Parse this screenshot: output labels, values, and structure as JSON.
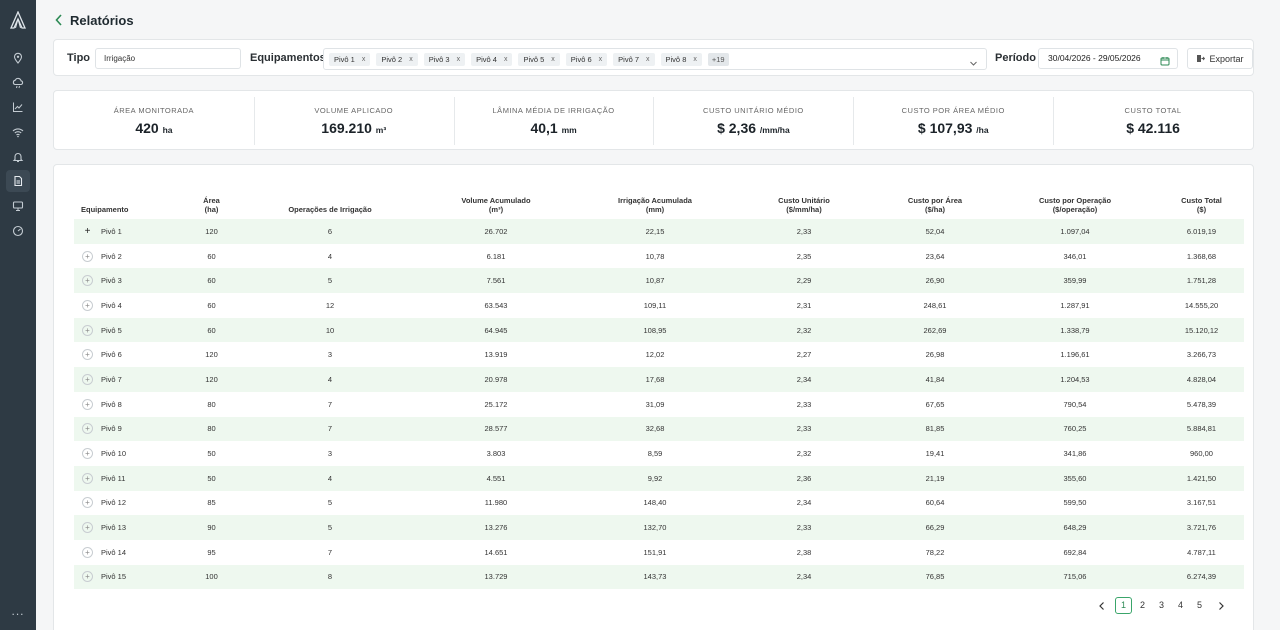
{
  "sidebar": {
    "logo": "brand-logo",
    "items": [
      {
        "icon": "map-pin-icon"
      },
      {
        "icon": "cloud-rain-icon"
      },
      {
        "icon": "chart-icon"
      },
      {
        "icon": "wifi-icon"
      },
      {
        "icon": "bell-icon"
      },
      {
        "icon": "report-icon",
        "active": true
      },
      {
        "icon": "monitor-icon"
      },
      {
        "icon": "gauge-icon"
      }
    ],
    "more": "..."
  },
  "header": {
    "title": "Relatórios"
  },
  "filters": {
    "tipo_label": "Tipo",
    "tipo_value": "Irrigação",
    "equip_label": "Equipamentos",
    "chips": [
      "Pivô 1",
      "Pivô 2",
      "Pivô 3",
      "Pivô 4",
      "Pivô 5",
      "Pivô 6",
      "Pivô 7",
      "Pivô 8"
    ],
    "chip_remove": "x",
    "more_chips": "+19",
    "periodo_label": "Período",
    "periodo_value": "30/04/2026 - 29/05/2026",
    "export_label": "Exportar"
  },
  "kpis": [
    {
      "label": "Área monitorada",
      "value": "420",
      "unit": "ha"
    },
    {
      "label": "Volume aplicado",
      "value": "169.210",
      "unit": "m³"
    },
    {
      "label": "Lâmina média de irrigação",
      "value": "40,1",
      "unit": "mm"
    },
    {
      "label": "Custo unitário médio",
      "value": "$ 2,36",
      "unit": "/mm/ha"
    },
    {
      "label": "Custo por área médio",
      "value": "$ 107,93",
      "unit": "/ha"
    },
    {
      "label": "Custo total",
      "value": "$ 42.116",
      "unit": ""
    }
  ],
  "table": {
    "headers": [
      {
        "l1": "Equipamento",
        "l2": ""
      },
      {
        "l1": "Área",
        "l2": "(ha)"
      },
      {
        "l1": "Operações de Irrigação",
        "l2": ""
      },
      {
        "l1": "Volume Acumulado",
        "l2": "(m³)"
      },
      {
        "l1": "Irrigação Acumulada",
        "l2": "(mm)"
      },
      {
        "l1": "Custo Unitário",
        "l2": "($/mm/ha)"
      },
      {
        "l1": "Custo por Área",
        "l2": "($/ha)"
      },
      {
        "l1": "Custo por Operação",
        "l2": "($/operação)"
      },
      {
        "l1": "Custo Total",
        "l2": "($)"
      }
    ],
    "rows": [
      [
        "Pivô 1",
        "120",
        "6",
        "26.702",
        "22,15",
        "2,33",
        "52,04",
        "1.097,04",
        "6.019,19"
      ],
      [
        "Pivô 2",
        "60",
        "4",
        "6.181",
        "10,78",
        "2,35",
        "23,64",
        "346,01",
        "1.368,68"
      ],
      [
        "Pivô 3",
        "60",
        "5",
        "7.561",
        "10,87",
        "2,29",
        "26,90",
        "359,99",
        "1.751,28"
      ],
      [
        "Pivô 4",
        "60",
        "12",
        "63.543",
        "109,11",
        "2,31",
        "248,61",
        "1.287,91",
        "14.555,20"
      ],
      [
        "Pivô 5",
        "60",
        "10",
        "64.945",
        "108,95",
        "2,32",
        "262,69",
        "1.338,79",
        "15.120,12"
      ],
      [
        "Pivô 6",
        "120",
        "3",
        "13.919",
        "12,02",
        "2,27",
        "26,98",
        "1.196,61",
        "3.266,73"
      ],
      [
        "Pivô 7",
        "120",
        "4",
        "20.978",
        "17,68",
        "2,34",
        "41,84",
        "1.204,53",
        "4.828,04"
      ],
      [
        "Pivô 8",
        "80",
        "7",
        "25.172",
        "31,09",
        "2,33",
        "67,65",
        "790,54",
        "5.478,39"
      ],
      [
        "Pivô 9",
        "80",
        "7",
        "28.577",
        "32,68",
        "2,33",
        "81,85",
        "760,25",
        "5.884,81"
      ],
      [
        "Pivô 10",
        "50",
        "3",
        "3.803",
        "8,59",
        "2,32",
        "19,41",
        "341,86",
        "960,00"
      ],
      [
        "Pivô 11",
        "50",
        "4",
        "4.551",
        "9,92",
        "2,36",
        "21,19",
        "355,60",
        "1.421,50"
      ],
      [
        "Pivô 12",
        "85",
        "5",
        "11.980",
        "148,40",
        "2,34",
        "60,64",
        "599,50",
        "3.167,51"
      ],
      [
        "Pivô 13",
        "90",
        "5",
        "13.276",
        "132,70",
        "2,33",
        "66,29",
        "648,29",
        "3.721,76"
      ],
      [
        "Pivô 14",
        "95",
        "7",
        "14.651",
        "151,91",
        "2,38",
        "78,22",
        "692,84",
        "4.787,11"
      ],
      [
        "Pivô 15",
        "100",
        "8",
        "13.729",
        "143,73",
        "2,34",
        "76,85",
        "715,06",
        "6.274,39"
      ]
    ],
    "expand_symbol": "+"
  },
  "pagination": {
    "pages": [
      "1",
      "2",
      "3",
      "4",
      "5"
    ],
    "current": "1"
  },
  "colors": {
    "sidebar": "#2e3a44",
    "accent": "#3aa56a",
    "row_alt": "#eef8ef"
  }
}
